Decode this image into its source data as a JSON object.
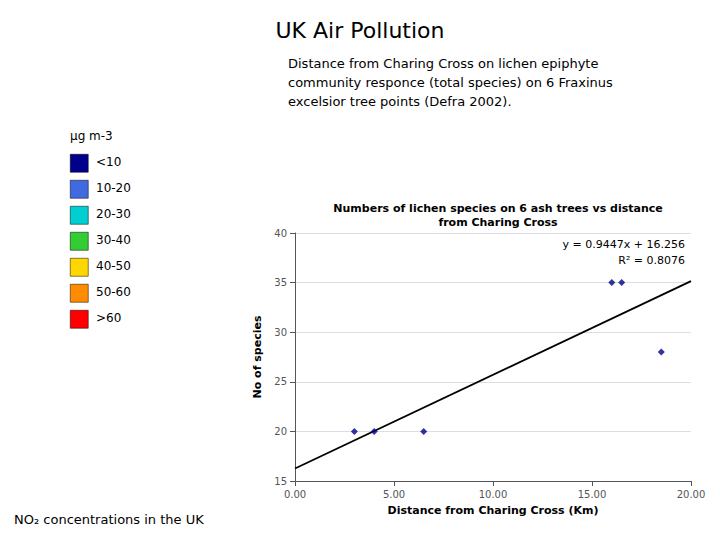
{
  "chart_data": {
    "type": "scatter",
    "title": "UK Air Pollution",
    "subtitle": "Numbers of lichen species on 6 ash trees vs distance\nfrom Charing Cross",
    "description": "Distance from Charing Cross on lichen epiphyte\ncommunity responce (total species) on 6 Fraxinus\nexcelsior tree points (Defra 2002).",
    "xlabel": "Distance from Charing Cross (Km)",
    "ylabel": "No of species",
    "series": [
      {
        "type": "scatter",
        "color": "#00008B",
        "marker": "diamond",
        "x": [
          3.0,
          4.0,
          6.5,
          16.0,
          16.5,
          18.5
        ],
        "values": [
          20,
          20,
          20,
          35,
          35,
          28
        ]
      },
      {
        "type": "line",
        "color": "#000000",
        "line_style": "solid",
        "x": [
          0.0,
          20.0
        ],
        "values": [
          16.256,
          35.15
        ]
      }
    ],
    "annotations": [
      "y = 0.9447x + 16.256",
      "R² = 0.8076"
    ],
    "footer": "NO₂ concentrations in the UK",
    "colour_key": {
      "title": "μg m-3",
      "labels": [
        "<10",
        "10-20",
        "20-30",
        "30-40",
        "40-50",
        "50-60",
        ">60"
      ],
      "colors": [
        "#00008B",
        "#4169E1",
        "#00CED1",
        "#32CD32",
        "#FFD700",
        "#FF8C00",
        "#FF0000"
      ]
    },
    "xlim": [
      0.0,
      20.0
    ],
    "ylim": [
      15,
      40
    ],
    "xticks": [
      {
        "value": 0.0,
        "label": "0.00"
      },
      {
        "value": 5.0,
        "label": "5.00"
      },
      {
        "value": 10.0,
        "label": "10.00"
      },
      {
        "value": 15.0,
        "label": "15.00"
      },
      {
        "value": 20.0,
        "label": "20.00"
      }
    ],
    "yticks": [
      15,
      20,
      25,
      30,
      35,
      40
    ],
    "grid": true
  }
}
